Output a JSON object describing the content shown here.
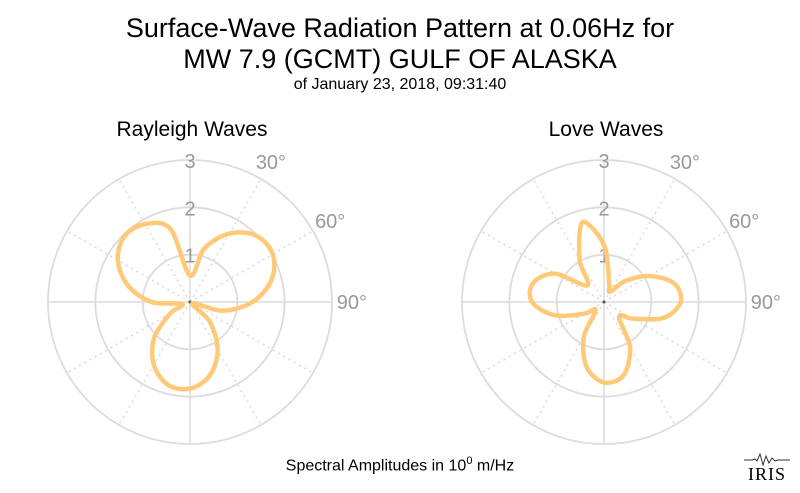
{
  "title_line1": "Surface-Wave Radiation Pattern at 0.06Hz for",
  "title_line2": "MW 7.9 (GCMT) GULF OF ALASKA",
  "subtitle": "of January 23, 2018, 09:31:40",
  "footer": {
    "prefix": "Spectral Amplitudes in 10",
    "exponent": "0",
    "unit": "m/Hz"
  },
  "logo": "IRIS",
  "colors": {
    "pattern": "#ffc978",
    "grid": "#dcdcdc",
    "tick_label": "#999999"
  },
  "chart_data": [
    {
      "type": "polar-line",
      "title": "Rayleigh Waves",
      "angle_unit": "degrees (azimuth, clockwise from north)",
      "angular_tick_labels": [
        "30°",
        "60°",
        "90°"
      ],
      "radial_tick_labels": [
        "1",
        "2",
        "3"
      ],
      "rlim": [
        0,
        3
      ],
      "series": [
        {
          "azimuth": [
            0,
            15,
            30,
            45,
            60,
            75,
            90,
            105,
            120,
            135,
            150,
            165,
            180,
            195,
            210,
            225,
            240,
            255,
            270,
            285,
            300,
            315,
            330,
            345
          ],
          "amplitude": [
            0.56,
            1.17,
            1.67,
            1.98,
            2.02,
            1.78,
            1.32,
            0.71,
            0.06,
            0.59,
            1.17,
            1.61,
            1.83,
            1.81,
            1.53,
            1.07,
            0.48,
            0.17,
            0.81,
            1.36,
            1.76,
            1.96,
            1.9,
            1.6
          ]
        }
      ]
    },
    {
      "type": "polar-line",
      "title": "Love Waves",
      "angle_unit": "degrees (azimuth, clockwise from north)",
      "angular_tick_labels": [
        "30°",
        "60°",
        "90°"
      ],
      "radial_tick_labels": [
        "1",
        "2",
        "3"
      ],
      "rlim": [
        0,
        3
      ],
      "series": [
        {
          "azimuth": [
            0,
            15,
            30,
            45,
            60,
            75,
            90,
            105,
            120,
            135,
            150,
            165,
            180,
            195,
            210,
            225,
            240,
            255,
            270,
            285,
            300,
            315,
            330,
            345
          ],
          "amplitude": [
            1.2,
            0.42,
            0.25,
            0.62,
            1.1,
            1.53,
            1.62,
            1.3,
            0.7,
            0.45,
            1.1,
            1.6,
            1.7,
            1.42,
            0.85,
            0.25,
            0.5,
            1.08,
            1.52,
            1.55,
            1.2,
            0.5,
            1.03,
            1.75
          ]
        }
      ]
    }
  ]
}
